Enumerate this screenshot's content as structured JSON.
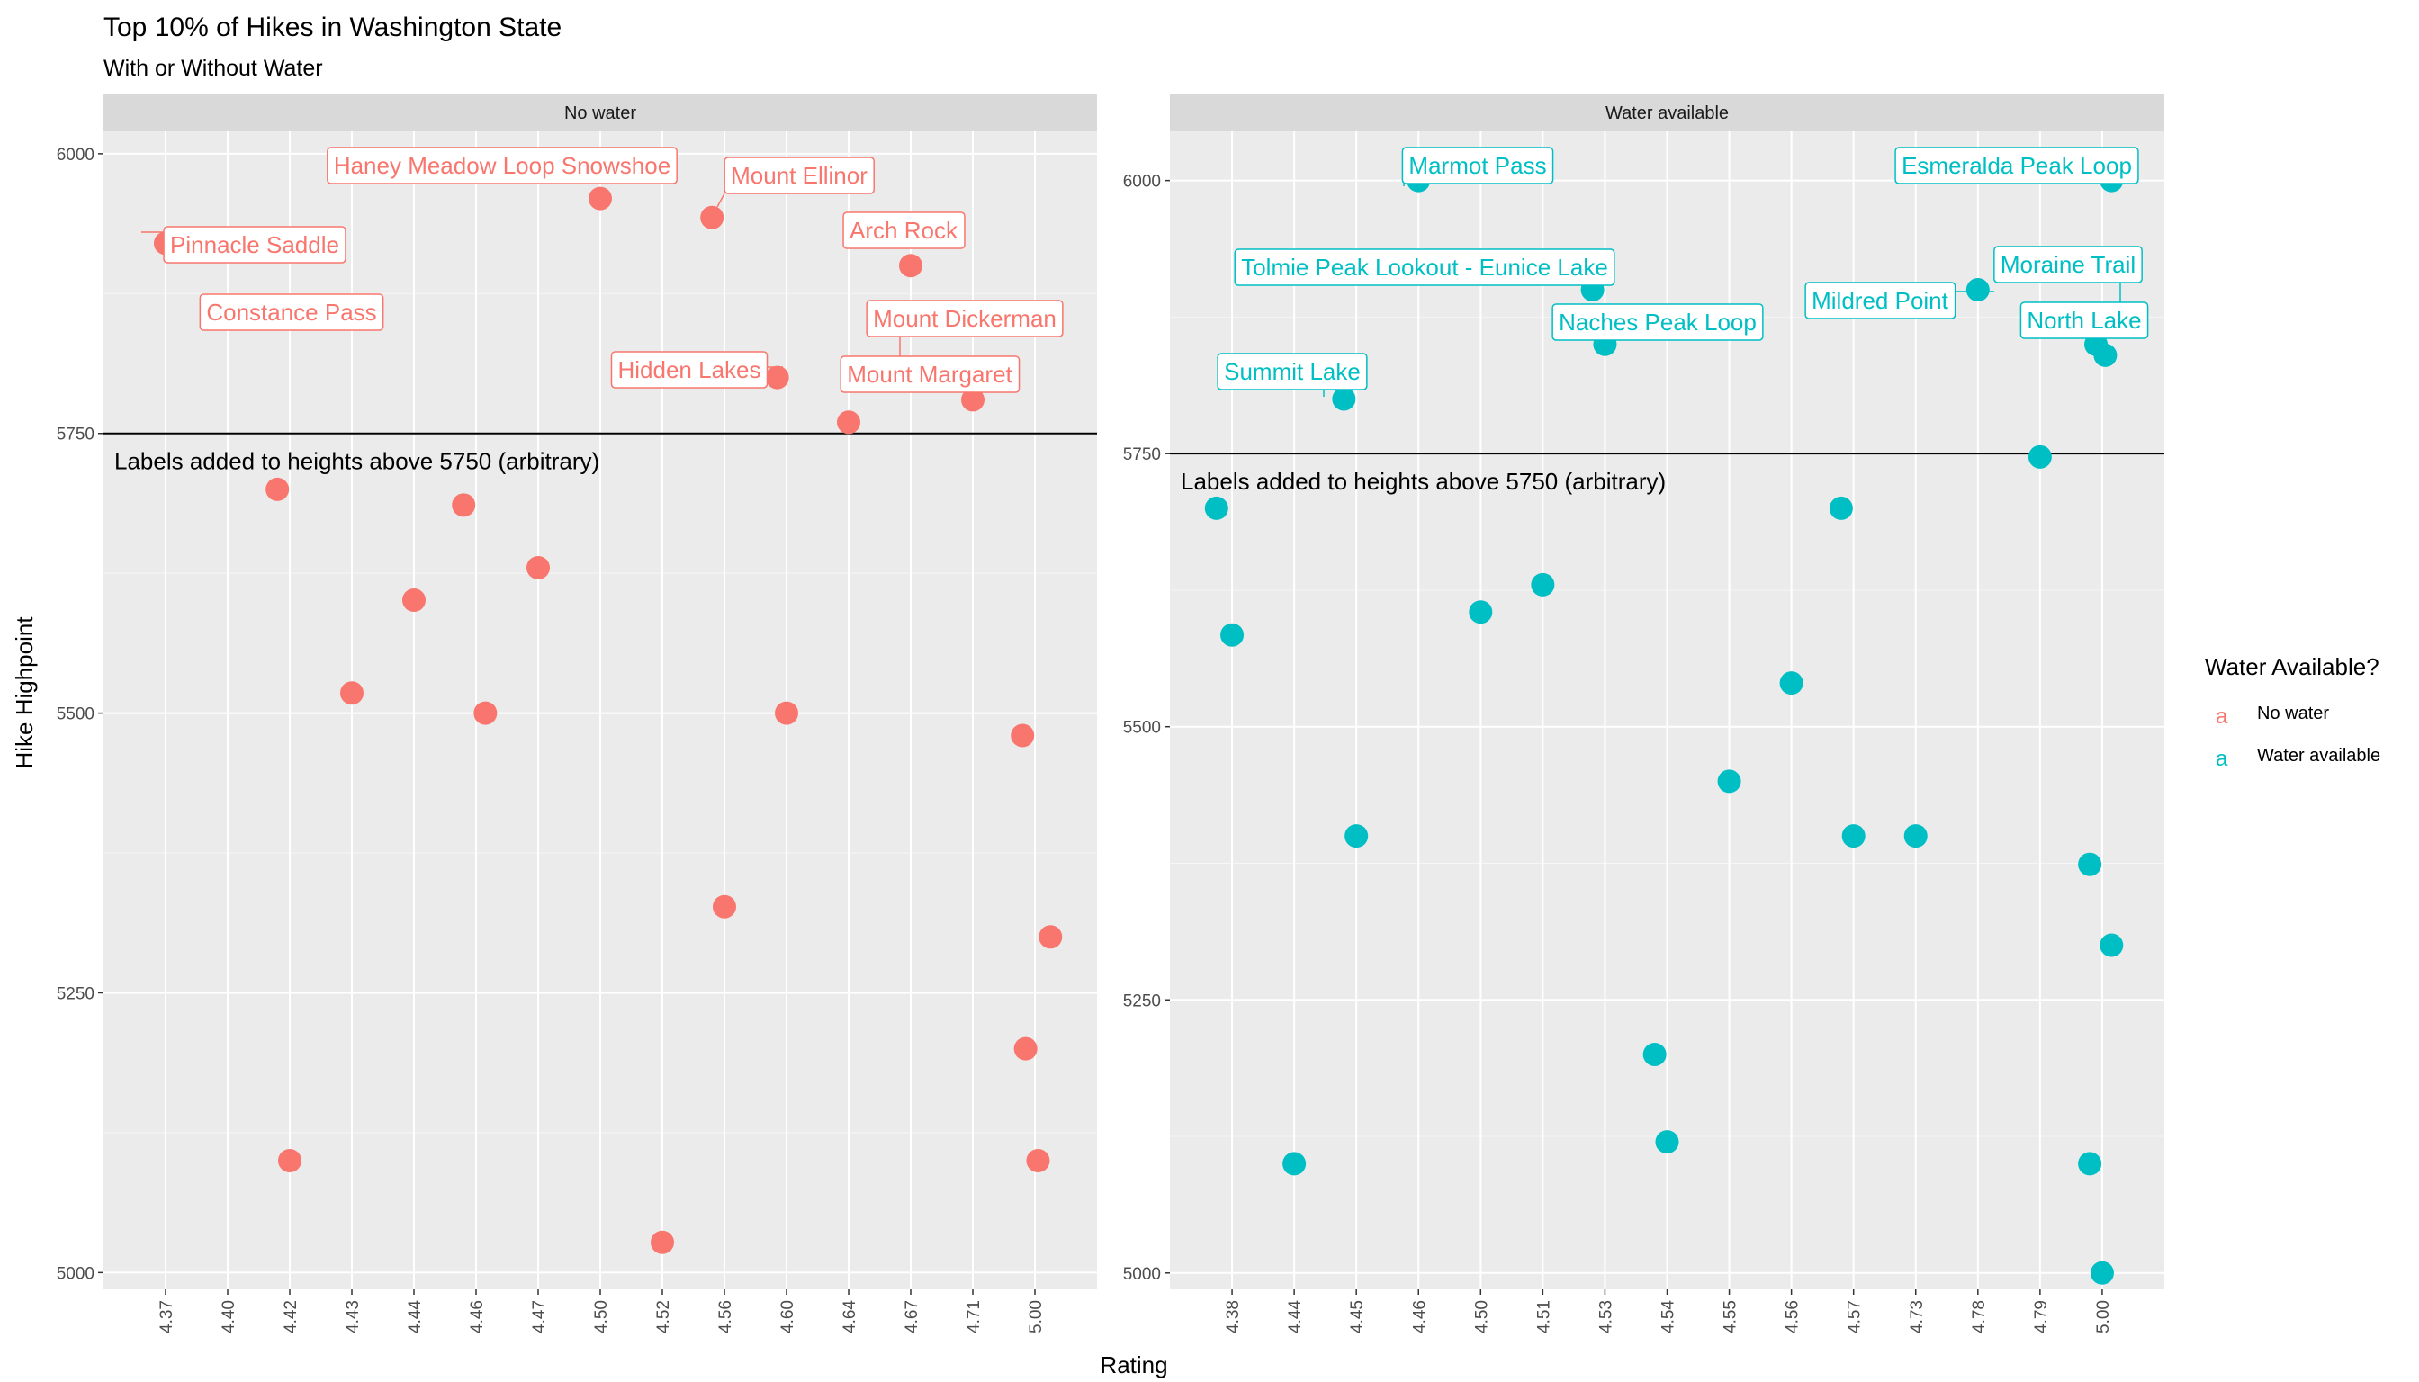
{
  "chart_data": {
    "type": "scatter",
    "title": "Top 10% of Hikes in Washington State",
    "subtitle": "With or Without Water",
    "xlabel": "Rating",
    "ylabel": "Hike Highpoint",
    "legend": {
      "title": "Water Available?",
      "position": "right",
      "entries": [
        {
          "label": "No water",
          "color": "#F8766D"
        },
        {
          "label": "Water available",
          "color": "#00BFC4"
        }
      ]
    },
    "reference_line": {
      "y": 5750,
      "note": "Labels added to heights above 5750 (arbitrary)"
    },
    "grid": true,
    "panels": [
      {
        "strip": "No water",
        "color": "#F8766D",
        "x_categories": [
          "4.37",
          "4.40",
          "4.42",
          "4.43",
          "4.44",
          "4.46",
          "4.47",
          "4.50",
          "4.52",
          "4.56",
          "4.60",
          "4.64",
          "4.67",
          "4.71",
          "5.00"
        ],
        "ylim": [
          4985,
          6020
        ],
        "yticks": [
          5000,
          5250,
          5500,
          5750,
          6000
        ],
        "points": [
          {
            "x": "4.37",
            "xo": 0.0,
            "y": 5920,
            "label": "Pinnacle Saddle"
          },
          {
            "x": "4.42",
            "xo": -0.2,
            "y": 5700
          },
          {
            "x": "4.42",
            "xo": 0.0,
            "y": 5100
          },
          {
            "x": "4.43",
            "xo": 0.0,
            "y": 5518
          },
          {
            "x": "4.44",
            "xo": 0.0,
            "y": 5601
          },
          {
            "x": "4.46",
            "xo": -0.2,
            "y": 5686
          },
          {
            "x": "4.46",
            "xo": 0.15,
            "y": 5500
          },
          {
            "x": "4.47",
            "xo": 0.0,
            "y": 5630
          },
          {
            "x": "4.50",
            "xo": 0.0,
            "y": 5960
          },
          {
            "x": "4.52",
            "xo": 0.0,
            "y": 5027
          },
          {
            "x": "4.56",
            "xo": -0.2,
            "y": 5943,
            "label": "Mount Ellinor"
          },
          {
            "x": "4.56",
            "xo": 0.0,
            "y": 5327
          },
          {
            "x": "4.60",
            "xo": -0.15,
            "y": 5800,
            "label": "Hidden Lakes"
          },
          {
            "x": "4.60",
            "xo": 0.0,
            "y": 5500
          },
          {
            "x": "4.64",
            "xo": 0.0,
            "y": 5760,
            "label": "Mount Dickerman"
          },
          {
            "x": "4.67",
            "xo": 0.0,
            "y": 5900,
            "label": "Arch Rock"
          },
          {
            "x": "4.71",
            "xo": 0.0,
            "y": 5780,
            "label": "Mount Margaret"
          },
          {
            "x": "5.00",
            "xo": -0.2,
            "y": 5480
          },
          {
            "x": "5.00",
            "xo": 0.25,
            "y": 5300
          },
          {
            "x": "5.00",
            "xo": -0.15,
            "y": 5200
          },
          {
            "x": "5.00",
            "xo": 0.05,
            "y": 5100
          }
        ],
        "labels": [
          {
            "text": "Pinnacle Saddle"
          },
          {
            "text": "Haney Meadow Loop Snowshoe"
          },
          {
            "text": "Mount Ellinor"
          },
          {
            "text": "Arch Rock"
          },
          {
            "text": "Constance Pass"
          },
          {
            "text": "Mount Dickerman"
          },
          {
            "text": "Hidden Lakes"
          },
          {
            "text": "Mount Margaret"
          }
        ]
      },
      {
        "strip": "Water available",
        "color": "#00BFC4",
        "x_categories": [
          "4.38",
          "4.44",
          "4.45",
          "4.46",
          "4.50",
          "4.51",
          "4.53",
          "4.54",
          "4.55",
          "4.56",
          "4.57",
          "4.73",
          "4.78",
          "4.79",
          "5.00"
        ],
        "ylim": [
          4985,
          6045
        ],
        "yticks": [
          5000,
          5250,
          5500,
          5750,
          6000
        ],
        "points": [
          {
            "x": "4.38",
            "xo": -0.25,
            "y": 5700
          },
          {
            "x": "4.38",
            "xo": 0.0,
            "y": 5584
          },
          {
            "x": "4.44",
            "xo": 0.0,
            "y": 5100
          },
          {
            "x": "4.45",
            "xo": -0.2,
            "y": 5800,
            "label": "Summit Lake"
          },
          {
            "x": "4.45",
            "xo": 0.0,
            "y": 5400
          },
          {
            "x": "4.46",
            "xo": 0.0,
            "y": 6000,
            "label": "Marmot Pass"
          },
          {
            "x": "4.50",
            "xo": 0.0,
            "y": 5605
          },
          {
            "x": "4.51",
            "xo": 0.0,
            "y": 5630
          },
          {
            "x": "4.53",
            "xo": -0.2,
            "y": 5900,
            "label": "Tolmie Peak Lookout - Eunice Lake"
          },
          {
            "x": "4.53",
            "xo": 0.0,
            "y": 5850,
            "label": "Naches Peak Loop"
          },
          {
            "x": "4.54",
            "xo": -0.2,
            "y": 5200
          },
          {
            "x": "4.54",
            "xo": 0.0,
            "y": 5120
          },
          {
            "x": "4.55",
            "xo": 0.0,
            "y": 5450
          },
          {
            "x": "4.56",
            "xo": 0.0,
            "y": 5540
          },
          {
            "x": "4.57",
            "xo": -0.2,
            "y": 5700
          },
          {
            "x": "4.57",
            "xo": 0.0,
            "y": 5400
          },
          {
            "x": "4.73",
            "xo": 0.0,
            "y": 5400
          },
          {
            "x": "4.78",
            "xo": 0.0,
            "y": 5900,
            "label": "Mildred Point"
          },
          {
            "x": "4.79",
            "xo": 0.0,
            "y": 5747
          },
          {
            "x": "5.00",
            "xo": 0.15,
            "y": 6000,
            "label": "Esmeralda Peak Loop"
          },
          {
            "x": "5.00",
            "xo": -0.1,
            "y": 5850,
            "label": "Moraine Trail"
          },
          {
            "x": "5.00",
            "xo": 0.05,
            "y": 5840,
            "label": "North Lake"
          },
          {
            "x": "5.00",
            "xo": -0.2,
            "y": 5374
          },
          {
            "x": "5.00",
            "xo": 0.15,
            "y": 5300
          },
          {
            "x": "5.00",
            "xo": -0.2,
            "y": 5100
          },
          {
            "x": "5.00",
            "xo": 0.0,
            "y": 5000
          }
        ],
        "labels": [
          {
            "text": "Marmot Pass"
          },
          {
            "text": "Esmeralda Peak Loop"
          },
          {
            "text": "Tolmie Peak Lookout - Eunice Lake"
          },
          {
            "text": "Moraine Trail"
          },
          {
            "text": "Mildred Point"
          },
          {
            "text": "Naches Peak Loop"
          },
          {
            "text": "North Lake"
          },
          {
            "text": "Summit Lake"
          }
        ]
      }
    ]
  }
}
